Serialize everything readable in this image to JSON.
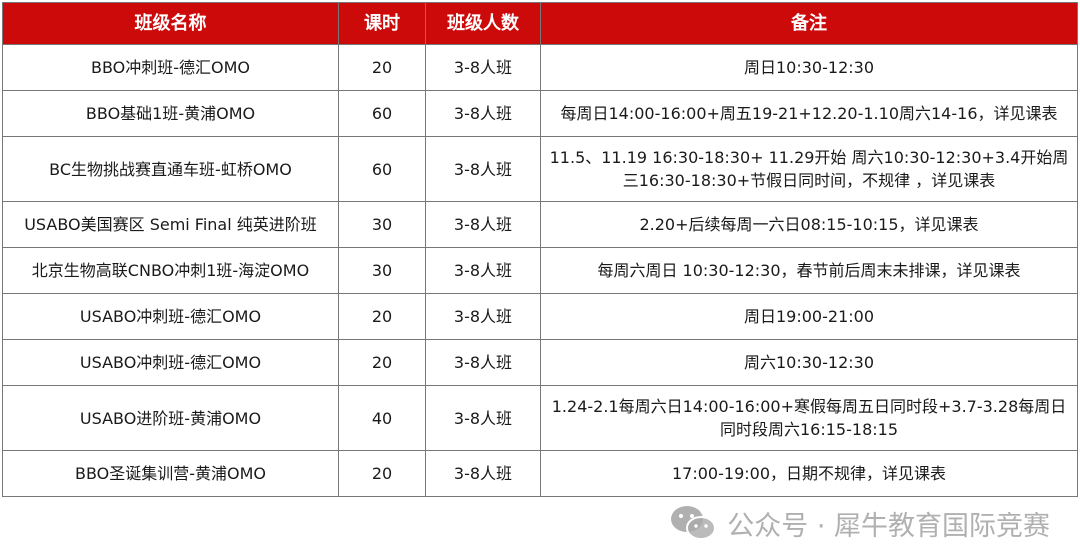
{
  "table": {
    "headers": [
      "班级名称",
      "课时",
      "班级人数",
      "备注"
    ],
    "rows": [
      {
        "name": "BBO冲刺班-德汇OMO",
        "hours": "20",
        "size": "3-8人班",
        "note": "周日10:30-12:30"
      },
      {
        "name": "BBO基础1班-黄浦OMO",
        "hours": "60",
        "size": "3-8人班",
        "note": "每周日14:00-16:00+周五19-21+12.20-1.10周六14-16，详见课表"
      },
      {
        "name": "BC生物挑战赛直通车班-虹桥OMO",
        "hours": "60",
        "size": "3-8人班",
        "note": "11.5、11.19 16:30-18:30+ 11.29开始 周六10:30-12:30+3.4开始周三16:30-18:30+节假日同时间，不规律 ，详见课表"
      },
      {
        "name": "USABO美国赛区 Semi Final 纯英进阶班",
        "hours": "30",
        "size": "3-8人班",
        "note": "2.20+后续每周一六日08:15-10:15，详见课表"
      },
      {
        "name": "北京生物高联CNBO冲刺1班-海淀OMO",
        "hours": "30",
        "size": "3-8人班",
        "note": "每周六周日 10:30-12:30，春节前后周末未排课，详见课表"
      },
      {
        "name": "USABO冲刺班-德汇OMO",
        "hours": "20",
        "size": "3-8人班",
        "note": "周日19:00-21:00"
      },
      {
        "name": "USABO冲刺班-德汇OMO",
        "hours": "20",
        "size": "3-8人班",
        "note": "周六10:30-12:30"
      },
      {
        "name": "USABO进阶班-黄浦OMO",
        "hours": "40",
        "size": "3-8人班",
        "note": "1.24-2.1每周六日14:00-16:00+寒假每周五日同时段+3.7-3.28每周日同时段周六16:15-18:15"
      },
      {
        "name": "BBO圣诞集训营-黄浦OMO",
        "hours": "20",
        "size": "3-8人班",
        "note": "17:00-19:00，日期不规律，详见课表"
      }
    ]
  },
  "watermark": {
    "text": "公众号 · 犀牛教育国际竞赛",
    "icon": "wechat-icon"
  },
  "colors": {
    "header_bg": "#cc0a0a",
    "header_text": "#ffffff"
  }
}
